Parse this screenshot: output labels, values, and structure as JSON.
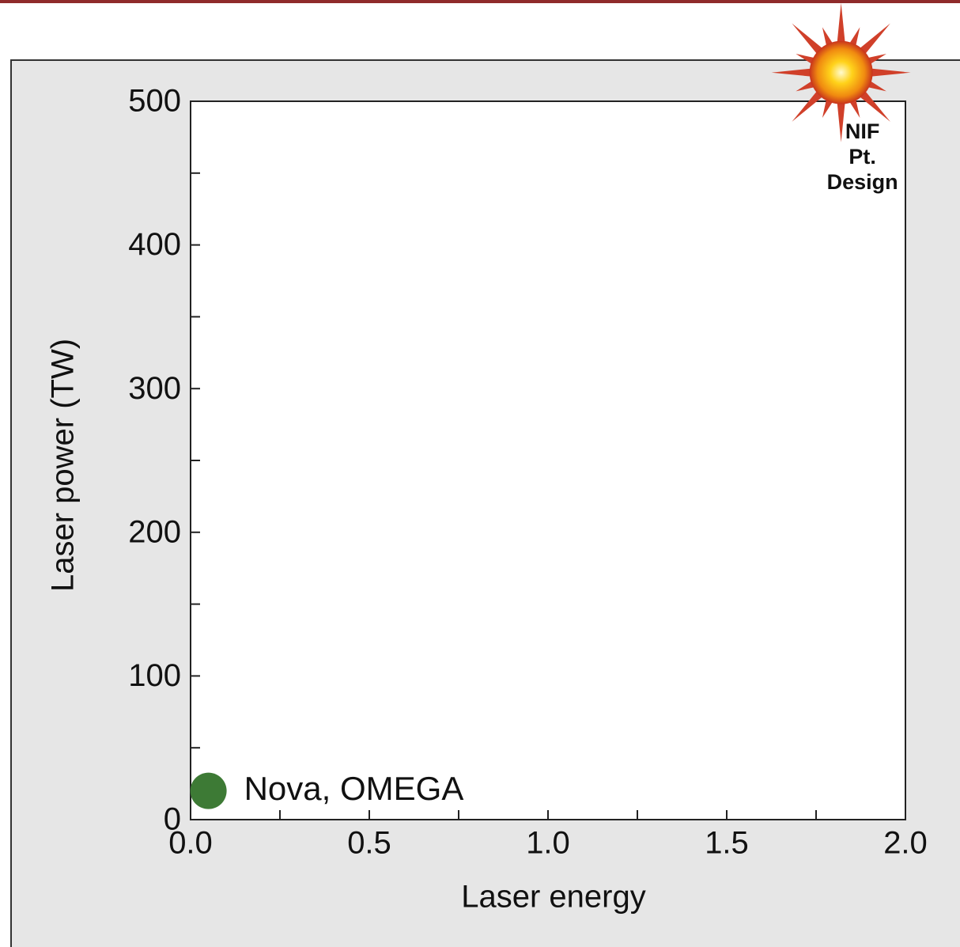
{
  "chart_data": {
    "type": "scatter",
    "x_label": "Laser energy",
    "y_label": "Laser power (TW)",
    "xlim": [
      0,
      2
    ],
    "ylim": [
      0,
      500
    ],
    "xticks": [
      {
        "value": 0,
        "label": "0.0"
      },
      0.5,
      {
        "value": 1,
        "label": "1.0"
      },
      1.5,
      {
        "value": 2,
        "label": "2.0"
      }
    ],
    "xminor": [
      0.25,
      0.75,
      1.25,
      1.75
    ],
    "yticks": [
      0,
      100,
      200,
      300,
      400,
      500
    ],
    "yminor": [
      50,
      150,
      250,
      350,
      450
    ],
    "points": [
      {
        "label_lines": [
          "Nova, OMEGA"
        ],
        "x": 0.05,
        "y": 20,
        "color": "#3d7a35",
        "marker": "circle"
      },
      {
        "label_lines": [
          "NIF",
          "Pt.",
          "Design"
        ],
        "x": 1.82,
        "y": 520,
        "color": "#f5a623",
        "marker": "star"
      }
    ]
  }
}
